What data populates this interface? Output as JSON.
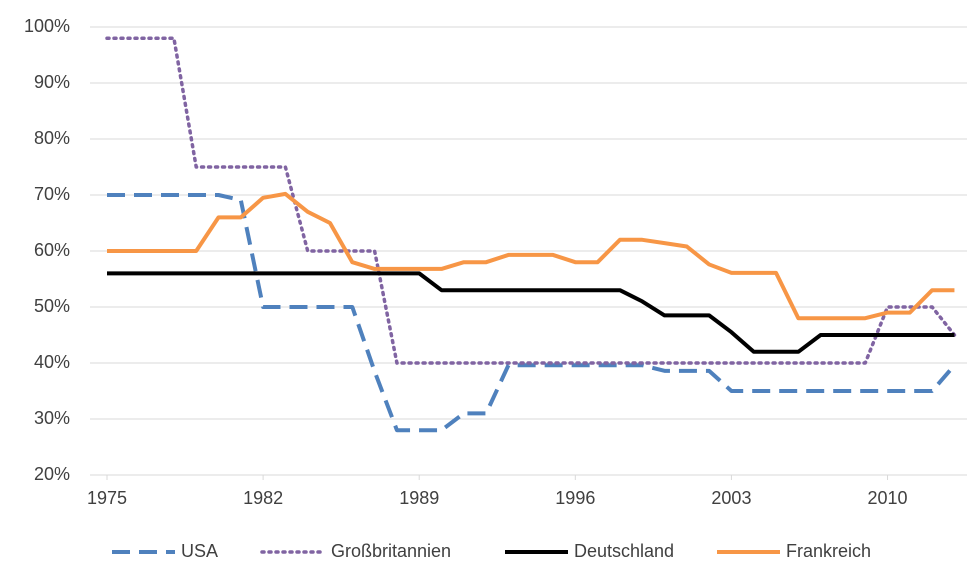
{
  "chart_data": {
    "type": "line",
    "x": [
      1975,
      1976,
      1977,
      1978,
      1979,
      1980,
      1981,
      1982,
      1983,
      1984,
      1985,
      1986,
      1987,
      1988,
      1989,
      1990,
      1991,
      1992,
      1993,
      1994,
      1995,
      1996,
      1997,
      1998,
      1999,
      2000,
      2001,
      2002,
      2003,
      2004,
      2005,
      2006,
      2007,
      2008,
      2009,
      2010,
      2011,
      2012,
      2013
    ],
    "series": [
      {
        "name": "USA",
        "color": "#4f81bd",
        "dash": "dashed",
        "values": [
          70,
          70,
          70,
          70,
          70,
          70,
          69.1,
          50,
          50,
          50,
          50,
          50,
          38.5,
          28,
          28,
          28,
          31,
          31,
          39.6,
          39.6,
          39.6,
          39.6,
          39.6,
          39.6,
          39.6,
          38.6,
          38.6,
          38.6,
          35,
          35,
          35,
          35,
          35,
          35,
          35,
          35,
          35,
          35,
          39.6
        ]
      },
      {
        "name": "Großbritannien",
        "color": "#8064a2",
        "dash": "dotted",
        "values": [
          98,
          98,
          98,
          98,
          75,
          75,
          75,
          75,
          75,
          60,
          60,
          60,
          60,
          40,
          40,
          40,
          40,
          40,
          40,
          40,
          40,
          40,
          40,
          40,
          40,
          40,
          40,
          40,
          40,
          40,
          40,
          40,
          40,
          40,
          40,
          50,
          50,
          50,
          45
        ]
      },
      {
        "name": "Deutschland",
        "color": "#000000",
        "dash": "solid",
        "values": [
          56,
          56,
          56,
          56,
          56,
          56,
          56,
          56,
          56,
          56,
          56,
          56,
          56,
          56,
          56,
          53,
          53,
          53,
          53,
          53,
          53,
          53,
          53,
          53,
          51,
          48.5,
          48.5,
          48.5,
          45.5,
          42,
          42,
          42,
          45,
          45,
          45,
          45,
          45,
          45,
          45
        ]
      },
      {
        "name": "Frankreich",
        "color": "#f79646",
        "dash": "solid",
        "values": [
          60,
          60,
          60,
          60,
          60,
          66,
          66,
          69.5,
          70.2,
          67,
          65,
          58,
          56.8,
          56.8,
          56.8,
          56.8,
          58,
          58,
          59.3,
          59.3,
          59.3,
          58,
          58,
          62,
          62,
          61.4,
          60.8,
          57.6,
          56.1,
          56.1,
          56.1,
          48,
          48,
          48,
          48,
          49,
          49,
          53,
          53
        ]
      }
    ],
    "xlim": [
      1975,
      2013.5
    ],
    "xticks": [
      1975,
      1982,
      1989,
      1996,
      2003,
      2010
    ],
    "ylim": [
      20,
      100
    ],
    "yticks": [
      {
        "value": 20,
        "label": "20%"
      },
      {
        "value": 30,
        "label": "30%"
      },
      {
        "value": 40,
        "label": "40%"
      },
      {
        "value": 50,
        "label": "50%"
      },
      {
        "value": 60,
        "label": "60%"
      },
      {
        "value": 70,
        "label": "70%"
      },
      {
        "value": 80,
        "label": "80%"
      },
      {
        "value": 90,
        "label": "90%"
      },
      {
        "value": 100,
        "label": "100%"
      }
    ],
    "grid": true,
    "legend": "bottom"
  }
}
